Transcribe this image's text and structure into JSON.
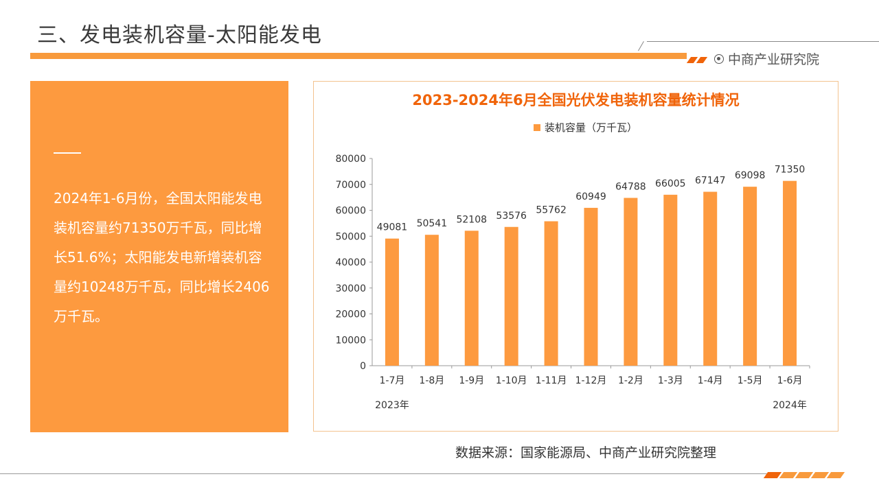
{
  "header": {
    "title": "三、发电装机容量-太阳能发电",
    "brand": "中商产业研究院"
  },
  "side_panel": {
    "text": "2024年1-6月份，全国太阳能发电装机容量约71350万千瓦，同比增长51.6%；太阳能发电新增装机容量约10248万千瓦，同比增长2406万千瓦。"
  },
  "chart_data": {
    "type": "bar",
    "title": "2023-2024年6月全国光伏发电装机容量统计情况",
    "categories": [
      "1-7月",
      "1-8月",
      "1-9月",
      "1-10月",
      "1-11月",
      "1-12月",
      "1-2月",
      "1-3月",
      "1-4月",
      "1-5月",
      "1-6月"
    ],
    "series": [
      {
        "name": "装机容量（万千瓦）",
        "values": [
          49081,
          50541,
          52108,
          53576,
          55762,
          60949,
          64788,
          66005,
          67147,
          69098,
          71350
        ]
      }
    ],
    "year_labels": [
      "2023年",
      "2024年"
    ],
    "yticks": [
      "0",
      "10000",
      "20000",
      "30000",
      "40000",
      "50000",
      "60000",
      "70000",
      "80000"
    ],
    "ylim": [
      0,
      80000
    ],
    "grid": false,
    "legend": "top-center",
    "bar_color": "#fd9a3f"
  },
  "footer": {
    "source": "数据来源：国家能源局、中商产业研究院整理"
  },
  "colors": {
    "accent": "#fd9a3f",
    "accent_dark": "#f0640a",
    "title_color": "#f0640a"
  }
}
